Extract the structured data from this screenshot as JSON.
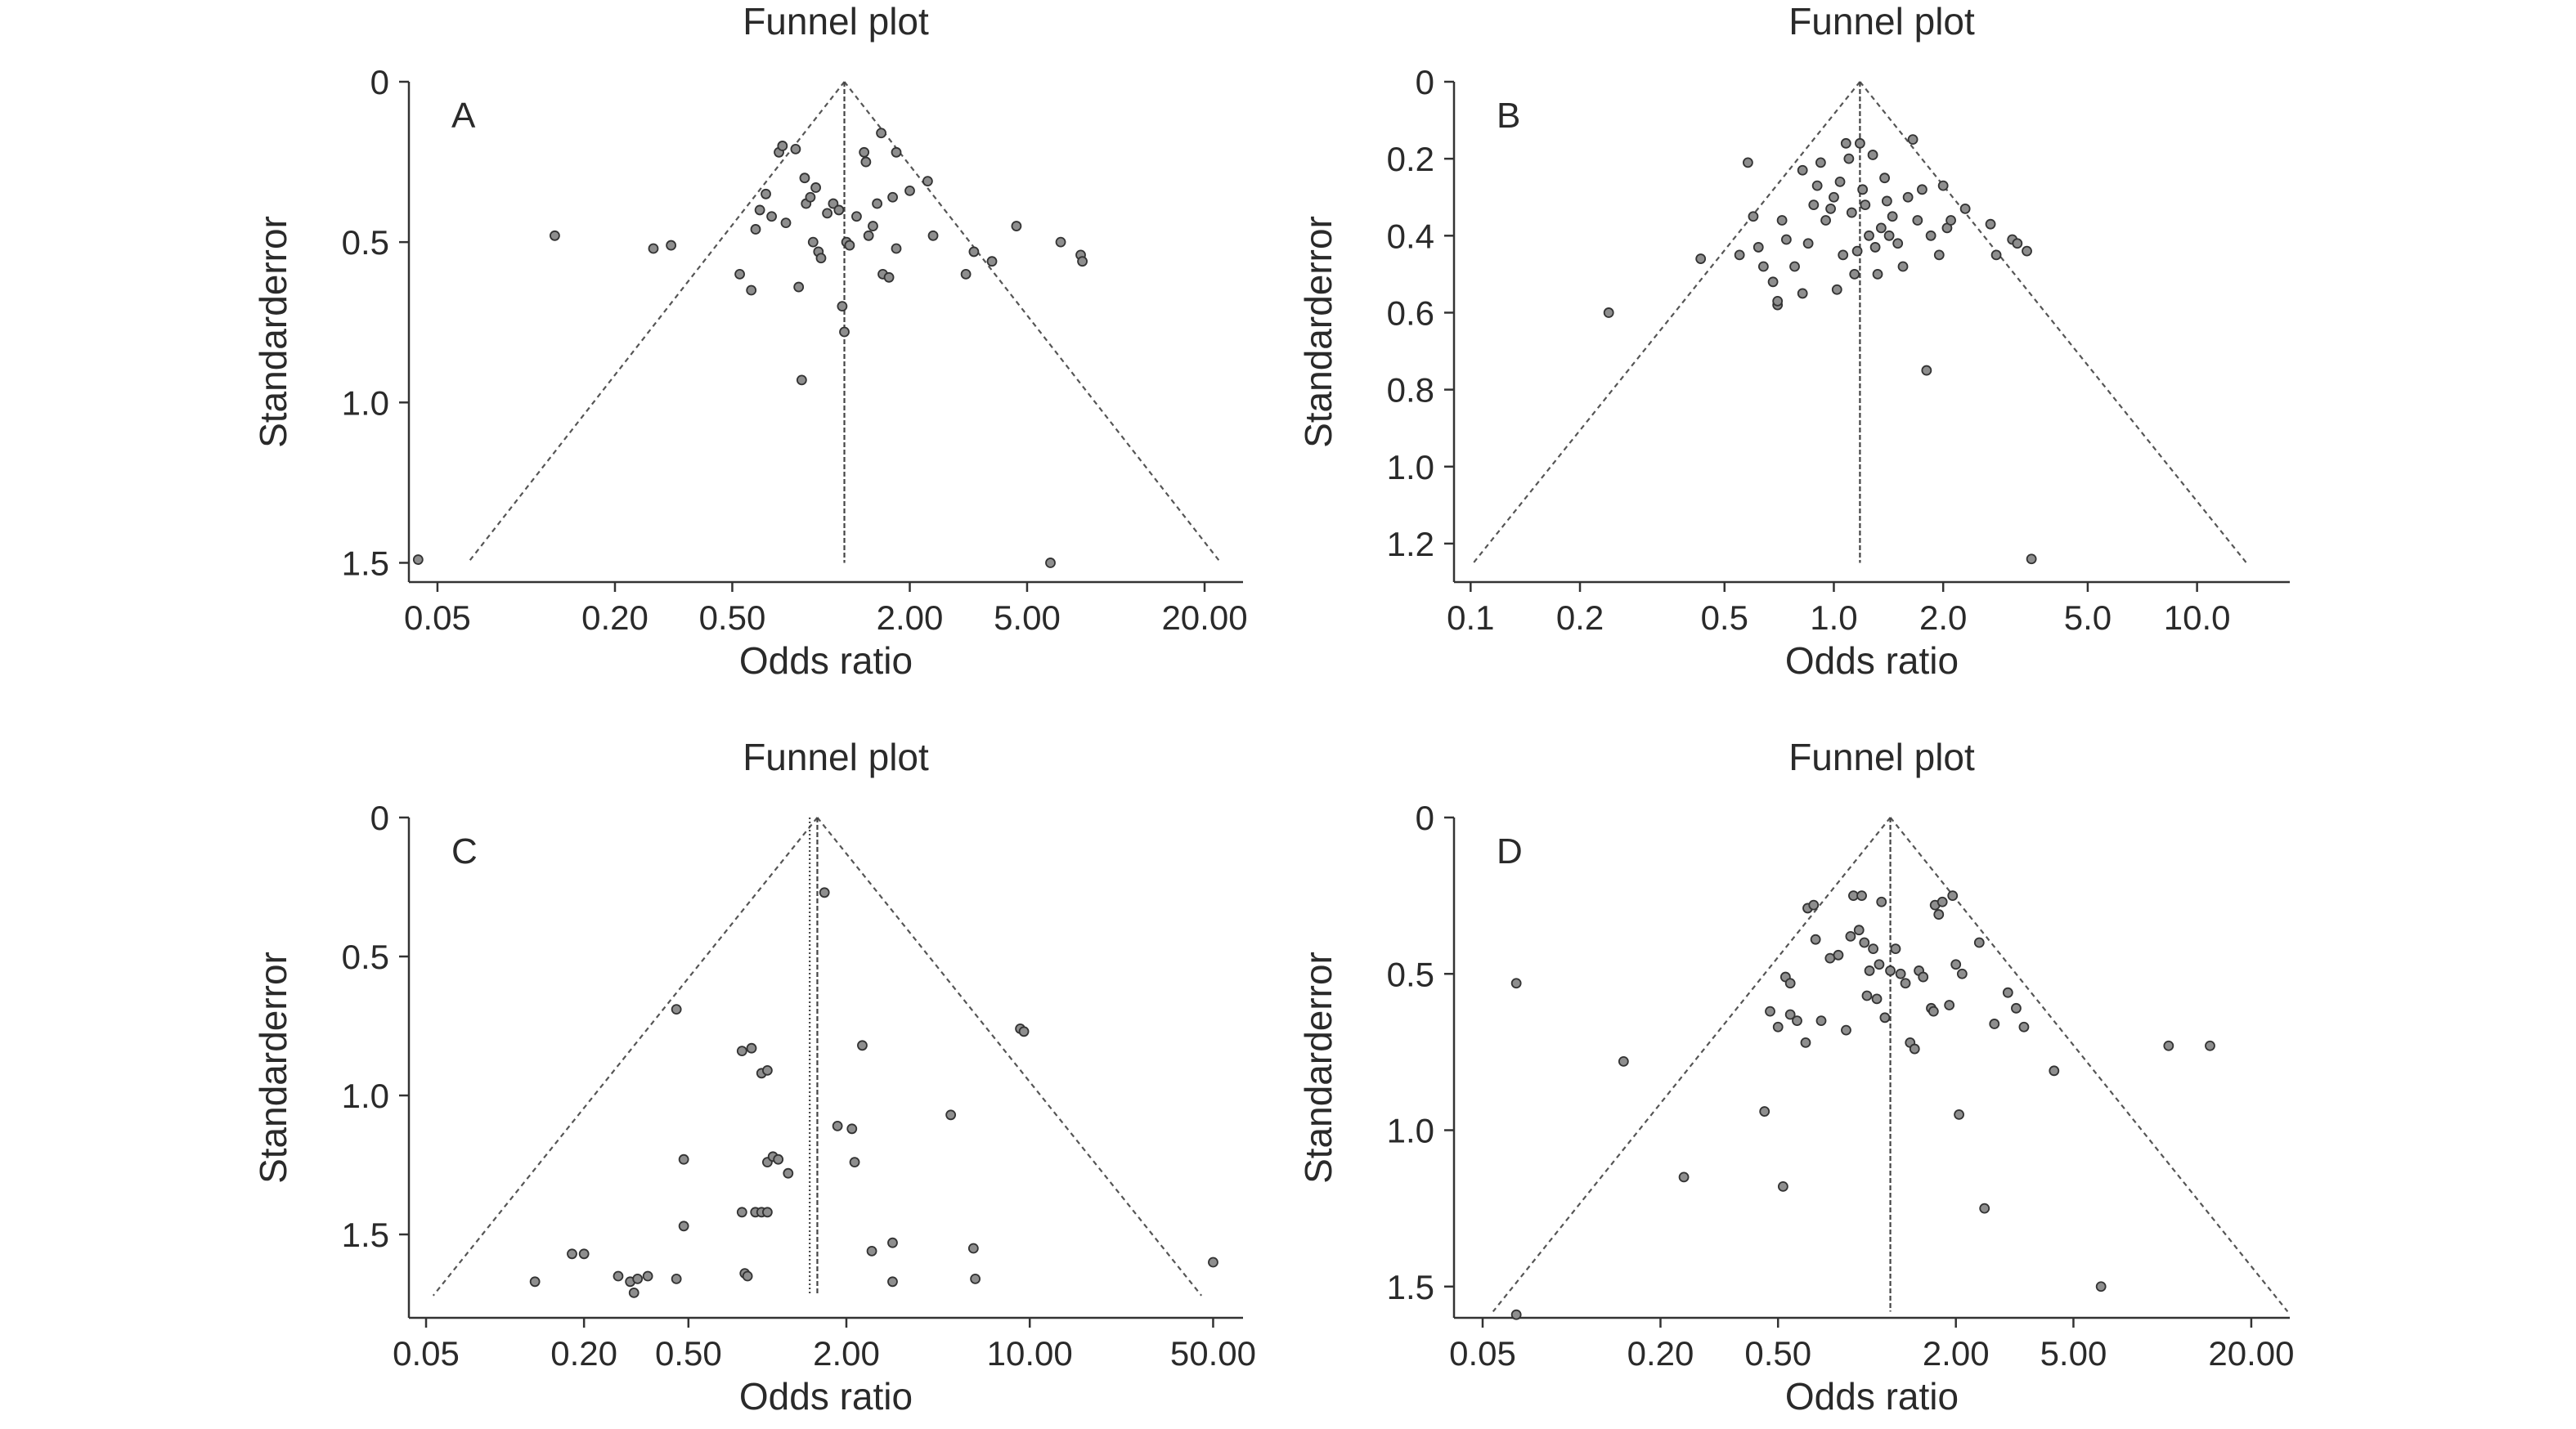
{
  "chart_data": [
    {
      "type": "scatter",
      "panel": "A",
      "title": "Funnel plot",
      "xlabel": "Odds ratio",
      "ylabel": "Standarderror",
      "x_scale": "log",
      "xlim": [
        0.04,
        27
      ],
      "ylim": [
        0,
        1.56
      ],
      "x_ticks": [
        0.05,
        0.2,
        0.5,
        2,
        5,
        20
      ],
      "x_tick_labels": [
        "0.05",
        "0.20",
        "0.50",
        "2.00",
        "5.00",
        "20.00"
      ],
      "y_ticks": [
        0,
        0.5,
        1.0,
        1.5
      ],
      "y_tick_labels": [
        "0",
        "0.5",
        "1.0",
        "1.5"
      ],
      "pooled_or": 1.2,
      "funnel_base_se": 1.5,
      "points": [
        {
          "or": 0.043,
          "se": 1.49
        },
        {
          "or": 0.125,
          "se": 0.48
        },
        {
          "or": 0.27,
          "se": 0.52
        },
        {
          "or": 0.31,
          "se": 0.51
        },
        {
          "or": 0.53,
          "se": 0.6
        },
        {
          "or": 0.58,
          "se": 0.65
        },
        {
          "or": 0.6,
          "se": 0.46
        },
        {
          "or": 0.62,
          "se": 0.4
        },
        {
          "or": 0.65,
          "se": 0.35
        },
        {
          "or": 0.68,
          "se": 0.42
        },
        {
          "or": 0.72,
          "se": 0.22
        },
        {
          "or": 0.74,
          "se": 0.2
        },
        {
          "or": 0.76,
          "se": 0.44
        },
        {
          "or": 0.82,
          "se": 0.21
        },
        {
          "or": 0.84,
          "se": 0.64
        },
        {
          "or": 0.86,
          "se": 0.93
        },
        {
          "or": 0.88,
          "se": 0.3
        },
        {
          "or": 0.89,
          "se": 0.38
        },
        {
          "or": 0.92,
          "se": 0.36
        },
        {
          "or": 0.94,
          "se": 0.5
        },
        {
          "or": 0.96,
          "se": 0.33
        },
        {
          "or": 0.98,
          "se": 0.53
        },
        {
          "or": 1.0,
          "se": 0.55
        },
        {
          "or": 1.05,
          "se": 0.41
        },
        {
          "or": 1.1,
          "se": 0.38
        },
        {
          "or": 1.15,
          "se": 0.4
        },
        {
          "or": 1.18,
          "se": 0.7
        },
        {
          "or": 1.2,
          "se": 0.78
        },
        {
          "or": 1.22,
          "se": 0.5
        },
        {
          "or": 1.25,
          "se": 0.51
        },
        {
          "or": 1.32,
          "se": 0.42
        },
        {
          "or": 1.4,
          "se": 0.22
        },
        {
          "or": 1.42,
          "se": 0.25
        },
        {
          "or": 1.45,
          "se": 0.48
        },
        {
          "or": 1.5,
          "se": 0.45
        },
        {
          "or": 1.55,
          "se": 0.38
        },
        {
          "or": 1.6,
          "se": 0.16
        },
        {
          "or": 1.62,
          "se": 0.6
        },
        {
          "or": 1.7,
          "se": 0.61
        },
        {
          "or": 1.75,
          "se": 0.36
        },
        {
          "or": 1.8,
          "se": 0.22
        },
        {
          "or": 1.8,
          "se": 0.52
        },
        {
          "or": 2.0,
          "se": 0.34
        },
        {
          "or": 2.3,
          "se": 0.31
        },
        {
          "or": 2.4,
          "se": 0.48
        },
        {
          "or": 3.1,
          "se": 0.6
        },
        {
          "or": 3.3,
          "se": 0.53
        },
        {
          "or": 3.8,
          "se": 0.56
        },
        {
          "or": 4.6,
          "se": 0.45
        },
        {
          "or": 6.0,
          "se": 1.5
        },
        {
          "or": 6.5,
          "se": 0.5
        },
        {
          "or": 7.6,
          "se": 0.54
        },
        {
          "or": 7.7,
          "se": 0.56
        }
      ]
    },
    {
      "type": "scatter",
      "panel": "B",
      "title": "Funnel plot",
      "xlabel": "Odds ratio",
      "ylabel": "Standarderror",
      "x_scale": "log",
      "xlim": [
        0.09,
        18
      ],
      "ylim": [
        0,
        1.3
      ],
      "x_ticks": [
        0.1,
        0.2,
        0.5,
        1,
        2,
        5,
        10
      ],
      "x_tick_labels": [
        "0.1",
        "0.2",
        "0.5",
        "1.0",
        "2.0",
        "5.0",
        "10.0"
      ],
      "y_ticks": [
        0,
        0.2,
        0.4,
        0.6,
        0.8,
        1.0,
        1.2
      ],
      "y_tick_labels": [
        "0",
        "0.2",
        "0.4",
        "0.6",
        "0.8",
        "1.0",
        "1.2"
      ],
      "pooled_or": 1.18,
      "funnel_base_se": 1.25,
      "points": [
        {
          "or": 0.24,
          "se": 0.6
        },
        {
          "or": 0.43,
          "se": 0.46
        },
        {
          "or": 0.55,
          "se": 0.45
        },
        {
          "or": 0.58,
          "se": 0.21
        },
        {
          "or": 0.6,
          "se": 0.35
        },
        {
          "or": 0.62,
          "se": 0.43
        },
        {
          "or": 0.64,
          "se": 0.48
        },
        {
          "or": 0.68,
          "se": 0.52
        },
        {
          "or": 0.7,
          "se": 0.58
        },
        {
          "or": 0.7,
          "se": 0.57
        },
        {
          "or": 0.72,
          "se": 0.36
        },
        {
          "or": 0.74,
          "se": 0.41
        },
        {
          "or": 0.78,
          "se": 0.48
        },
        {
          "or": 0.82,
          "se": 0.23
        },
        {
          "or": 0.82,
          "se": 0.55
        },
        {
          "or": 0.85,
          "se": 0.42
        },
        {
          "or": 0.88,
          "se": 0.32
        },
        {
          "or": 0.9,
          "se": 0.27
        },
        {
          "or": 0.92,
          "se": 0.21
        },
        {
          "or": 0.95,
          "se": 0.36
        },
        {
          "or": 0.98,
          "se": 0.33
        },
        {
          "or": 1.0,
          "se": 0.3
        },
        {
          "or": 1.02,
          "se": 0.54
        },
        {
          "or": 1.04,
          "se": 0.26
        },
        {
          "or": 1.06,
          "se": 0.45
        },
        {
          "or": 1.08,
          "se": 0.16
        },
        {
          "or": 1.1,
          "se": 0.2
        },
        {
          "or": 1.12,
          "se": 0.34
        },
        {
          "or": 1.14,
          "se": 0.5
        },
        {
          "or": 1.16,
          "se": 0.44
        },
        {
          "or": 1.18,
          "se": 0.16
        },
        {
          "or": 1.2,
          "se": 0.28
        },
        {
          "or": 1.22,
          "se": 0.32
        },
        {
          "or": 1.25,
          "se": 0.4
        },
        {
          "or": 1.28,
          "se": 0.19
        },
        {
          "or": 1.3,
          "se": 0.43
        },
        {
          "or": 1.32,
          "se": 0.5
        },
        {
          "or": 1.35,
          "se": 0.38
        },
        {
          "or": 1.38,
          "se": 0.25
        },
        {
          "or": 1.4,
          "se": 0.31
        },
        {
          "or": 1.42,
          "se": 0.4
        },
        {
          "or": 1.45,
          "se": 0.35
        },
        {
          "or": 1.5,
          "se": 0.42
        },
        {
          "or": 1.55,
          "se": 0.48
        },
        {
          "or": 1.6,
          "se": 0.3
        },
        {
          "or": 1.65,
          "se": 0.15
        },
        {
          "or": 1.7,
          "se": 0.36
        },
        {
          "or": 1.75,
          "se": 0.28
        },
        {
          "or": 1.8,
          "se": 0.75
        },
        {
          "or": 1.85,
          "se": 0.4
        },
        {
          "or": 1.95,
          "se": 0.45
        },
        {
          "or": 2.0,
          "se": 0.27
        },
        {
          "or": 2.05,
          "se": 0.38
        },
        {
          "or": 2.1,
          "se": 0.36
        },
        {
          "or": 2.3,
          "se": 0.33
        },
        {
          "or": 2.7,
          "se": 0.37
        },
        {
          "or": 2.8,
          "se": 0.45
        },
        {
          "or": 3.1,
          "se": 0.41
        },
        {
          "or": 3.2,
          "se": 0.42
        },
        {
          "or": 3.4,
          "se": 0.44
        },
        {
          "or": 3.5,
          "se": 1.24
        }
      ]
    },
    {
      "type": "scatter",
      "panel": "C",
      "title": "Funnel plot",
      "xlabel": "Odds ratio",
      "ylabel": "Standarderror",
      "x_scale": "log",
      "xlim": [
        0.043,
        65
      ],
      "ylim": [
        0,
        1.8
      ],
      "x_ticks": [
        0.05,
        0.2,
        0.5,
        2,
        10,
        50
      ],
      "x_tick_labels": [
        "0.05",
        "0.20",
        "0.50",
        "2.00",
        "10.00",
        "50.00"
      ],
      "y_ticks": [
        0,
        0.5,
        1.0,
        1.5
      ],
      "y_tick_labels": [
        "0",
        "0.5",
        "1.0",
        "1.5"
      ],
      "pooled_or": 1.55,
      "pooled_or_fixed": 1.45,
      "funnel_base_se": 1.72,
      "points": [
        {
          "or": 0.13,
          "se": 1.67
        },
        {
          "or": 0.18,
          "se": 1.57
        },
        {
          "or": 0.2,
          "se": 1.57
        },
        {
          "or": 0.27,
          "se": 1.65
        },
        {
          "or": 0.3,
          "se": 1.67
        },
        {
          "or": 0.31,
          "se": 1.71
        },
        {
          "or": 0.32,
          "se": 1.66
        },
        {
          "or": 0.35,
          "se": 1.65
        },
        {
          "or": 0.45,
          "se": 1.66
        },
        {
          "or": 0.45,
          "se": 0.69
        },
        {
          "or": 0.48,
          "se": 1.23
        },
        {
          "or": 0.48,
          "se": 1.47
        },
        {
          "or": 0.8,
          "se": 0.84
        },
        {
          "or": 0.8,
          "se": 1.42
        },
        {
          "or": 0.82,
          "se": 1.64
        },
        {
          "or": 0.84,
          "se": 1.65
        },
        {
          "or": 0.87,
          "se": 0.83
        },
        {
          "or": 0.9,
          "se": 1.42
        },
        {
          "or": 0.95,
          "se": 0.92
        },
        {
          "or": 0.95,
          "se": 1.42
        },
        {
          "or": 1.0,
          "se": 0.91
        },
        {
          "or": 1.0,
          "se": 1.42
        },
        {
          "or": 1.0,
          "se": 1.24
        },
        {
          "or": 1.05,
          "se": 1.22
        },
        {
          "or": 1.1,
          "se": 1.23
        },
        {
          "or": 1.2,
          "se": 1.28
        },
        {
          "or": 1.65,
          "se": 0.27
        },
        {
          "or": 1.85,
          "se": 1.11
        },
        {
          "or": 2.1,
          "se": 1.12
        },
        {
          "or": 2.15,
          "se": 1.24
        },
        {
          "or": 2.3,
          "se": 0.82
        },
        {
          "or": 2.5,
          "se": 1.56
        },
        {
          "or": 3.0,
          "se": 1.53
        },
        {
          "or": 3.0,
          "se": 1.67
        },
        {
          "or": 5.0,
          "se": 1.07
        },
        {
          "or": 6.1,
          "se": 1.55
        },
        {
          "or": 6.2,
          "se": 1.66
        },
        {
          "or": 9.2,
          "se": 0.76
        },
        {
          "or": 9.5,
          "se": 0.77
        },
        {
          "or": 50.0,
          "se": 1.6
        }
      ]
    },
    {
      "type": "scatter",
      "panel": "D",
      "title": "Funnel plot",
      "xlabel": "Odds ratio",
      "ylabel": "Standarderror",
      "x_scale": "log",
      "xlim": [
        0.04,
        27
      ],
      "ylim": [
        0,
        1.6
      ],
      "x_ticks": [
        0.05,
        0.2,
        0.5,
        2,
        5,
        20
      ],
      "x_tick_labels": [
        "0.05",
        "0.20",
        "0.50",
        "2.00",
        "5.00",
        "20.00"
      ],
      "y_ticks": [
        0,
        0.5,
        1.0,
        1.5
      ],
      "y_tick_labels": [
        "0",
        "0.5",
        "1.0",
        "1.5"
      ],
      "pooled_or": 1.2,
      "funnel_base_se": 1.58,
      "points": [
        {
          "or": 0.065,
          "se": 0.53
        },
        {
          "or": 0.065,
          "se": 1.59
        },
        {
          "or": 0.15,
          "se": 0.78
        },
        {
          "or": 0.24,
          "se": 1.15
        },
        {
          "or": 0.45,
          "se": 0.94
        },
        {
          "or": 0.47,
          "se": 0.62
        },
        {
          "or": 0.5,
          "se": 0.67
        },
        {
          "or": 0.52,
          "se": 1.18
        },
        {
          "or": 0.53,
          "se": 0.51
        },
        {
          "or": 0.55,
          "se": 0.53
        },
        {
          "or": 0.55,
          "se": 0.63
        },
        {
          "or": 0.58,
          "se": 0.65
        },
        {
          "or": 0.62,
          "se": 0.72
        },
        {
          "or": 0.63,
          "se": 0.29
        },
        {
          "or": 0.66,
          "se": 0.28
        },
        {
          "or": 0.67,
          "se": 0.39
        },
        {
          "or": 0.7,
          "se": 0.65
        },
        {
          "or": 0.75,
          "se": 0.45
        },
        {
          "or": 0.8,
          "se": 0.44
        },
        {
          "or": 0.85,
          "se": 0.68
        },
        {
          "or": 0.88,
          "se": 0.38
        },
        {
          "or": 0.9,
          "se": 0.25
        },
        {
          "or": 0.94,
          "se": 0.36
        },
        {
          "or": 0.96,
          "se": 0.25
        },
        {
          "or": 0.98,
          "se": 0.4
        },
        {
          "or": 1.0,
          "se": 0.57
        },
        {
          "or": 1.02,
          "se": 0.49
        },
        {
          "or": 1.05,
          "se": 0.42
        },
        {
          "or": 1.08,
          "se": 0.58
        },
        {
          "or": 1.1,
          "se": 0.47
        },
        {
          "or": 1.12,
          "se": 0.27
        },
        {
          "or": 1.15,
          "se": 0.64
        },
        {
          "or": 1.2,
          "se": 0.49
        },
        {
          "or": 1.25,
          "se": 0.42
        },
        {
          "or": 1.3,
          "se": 0.5
        },
        {
          "or": 1.35,
          "se": 0.53
        },
        {
          "or": 1.4,
          "se": 0.72
        },
        {
          "or": 1.45,
          "se": 0.74
        },
        {
          "or": 1.5,
          "se": 0.49
        },
        {
          "or": 1.55,
          "se": 0.51
        },
        {
          "or": 1.65,
          "se": 0.61
        },
        {
          "or": 1.68,
          "se": 0.62
        },
        {
          "or": 1.7,
          "se": 0.28
        },
        {
          "or": 1.75,
          "se": 0.31
        },
        {
          "or": 1.8,
          "se": 0.27
        },
        {
          "or": 1.9,
          "se": 0.6
        },
        {
          "or": 1.95,
          "se": 0.25
        },
        {
          "or": 2.0,
          "se": 0.47
        },
        {
          "or": 2.05,
          "se": 0.95
        },
        {
          "or": 2.1,
          "se": 0.5
        },
        {
          "or": 2.4,
          "se": 0.4
        },
        {
          "or": 2.5,
          "se": 1.25
        },
        {
          "or": 2.7,
          "se": 0.66
        },
        {
          "or": 3.0,
          "se": 0.56
        },
        {
          "or": 3.2,
          "se": 0.61
        },
        {
          "or": 3.4,
          "se": 0.67
        },
        {
          "or": 4.3,
          "se": 0.81
        },
        {
          "or": 6.2,
          "se": 1.5
        },
        {
          "or": 10.5,
          "se": 0.73
        },
        {
          "or": 14.5,
          "se": 0.73
        }
      ]
    }
  ]
}
